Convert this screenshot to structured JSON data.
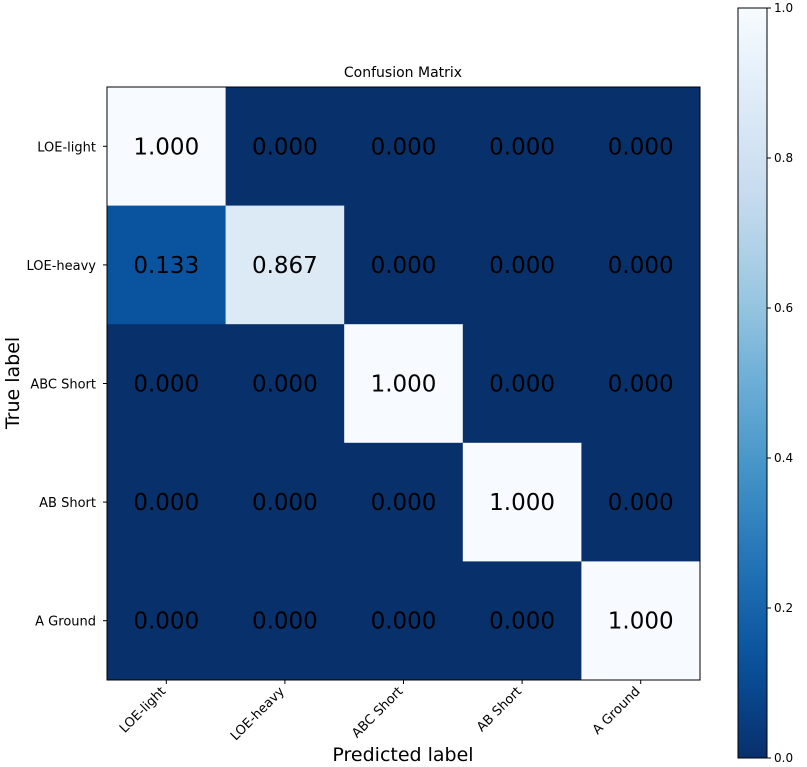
{
  "chart_data": {
    "type": "heatmap",
    "title": "Confusion Matrix",
    "xlabel": "Predicted label",
    "ylabel": "True label",
    "x_categories": [
      "LOE-light",
      "LOE-heavy",
      "ABC Short",
      "AB Short",
      "A Ground"
    ],
    "y_categories": [
      "LOE-light",
      "LOE-heavy",
      "ABC Short",
      "AB Short",
      "A Ground"
    ],
    "values": [
      [
        1.0,
        0.0,
        0.0,
        0.0,
        0.0
      ],
      [
        0.133,
        0.867,
        0.0,
        0.0,
        0.0
      ],
      [
        0.0,
        0.0,
        1.0,
        0.0,
        0.0
      ],
      [
        0.0,
        0.0,
        0.0,
        1.0,
        0.0
      ],
      [
        0.0,
        0.0,
        0.0,
        0.0,
        1.0
      ]
    ],
    "cell_labels": [
      [
        "1.000",
        "0.000",
        "0.000",
        "0.000",
        "0.000"
      ],
      [
        "0.133",
        "0.867",
        "0.000",
        "0.000",
        "0.000"
      ],
      [
        "0.000",
        "0.000",
        "1.000",
        "0.000",
        "0.000"
      ],
      [
        "0.000",
        "0.000",
        "0.000",
        "1.000",
        "0.000"
      ],
      [
        "0.000",
        "0.000",
        "0.000",
        "0.000",
        "1.000"
      ]
    ],
    "colormap": "Blues",
    "colorbar": {
      "range": [
        0.0,
        1.0
      ],
      "ticks": [
        "0.0",
        "0.2",
        "0.4",
        "0.6",
        "0.8",
        "1.0"
      ]
    },
    "legend": "none",
    "grid": false
  }
}
